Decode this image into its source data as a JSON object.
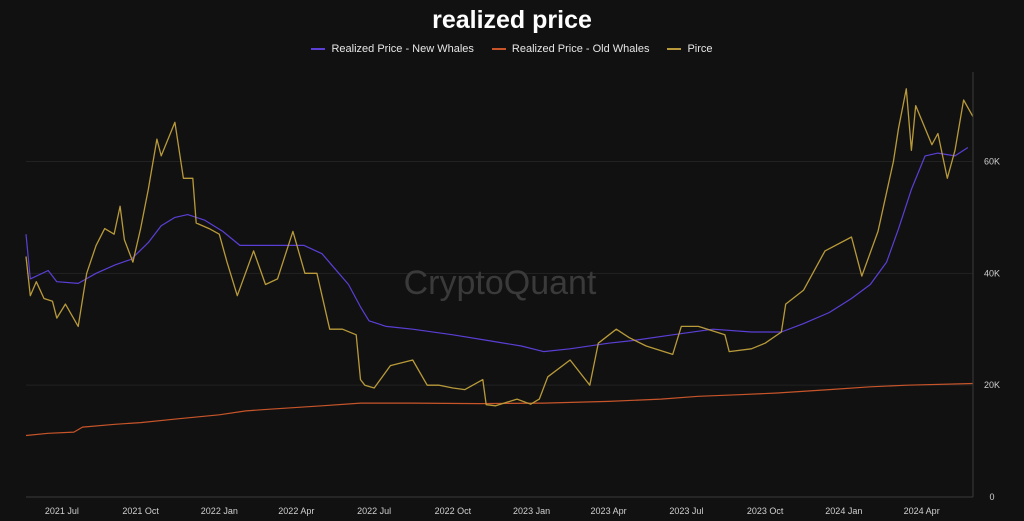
{
  "chart_data": {
    "type": "line",
    "title": "realized price",
    "watermark": "CryptoQuant",
    "x_tick_labels": [
      "2021 Jul",
      "2021 Oct",
      "2022 Jan",
      "2022 Apr",
      "2022 Jul",
      "2022 Oct",
      "2023 Jan",
      "2023 Apr",
      "2023 Jul",
      "2023 Oct",
      "2024 Jan",
      "2024 Apr"
    ],
    "y_tick_labels": [
      "0",
      "20K",
      "40K",
      "60K"
    ],
    "xlim": [
      "2021-05-20",
      "2024-05-31"
    ],
    "ylim": [
      0,
      76000
    ],
    "grid": true,
    "legend_position": "top-center",
    "series": [
      {
        "name": "Realized Price - New Whales",
        "color": "#5b3fd6",
        "points": [
          [
            "2021-05-20",
            47000
          ],
          [
            "2021-05-25",
            39000
          ],
          [
            "2021-06-15",
            40500
          ],
          [
            "2021-06-25",
            38500
          ],
          [
            "2021-07-20",
            38200
          ],
          [
            "2021-08-10",
            40000
          ],
          [
            "2021-09-01",
            41500
          ],
          [
            "2021-09-20",
            42500
          ],
          [
            "2021-10-10",
            45500
          ],
          [
            "2021-10-25",
            48500
          ],
          [
            "2021-11-10",
            50000
          ],
          [
            "2021-11-25",
            50500
          ],
          [
            "2021-12-15",
            49500
          ],
          [
            "2022-01-05",
            47500
          ],
          [
            "2022-01-25",
            45000
          ],
          [
            "2022-02-20",
            45000
          ],
          [
            "2022-03-20",
            45000
          ],
          [
            "2022-04-10",
            45000
          ],
          [
            "2022-05-01",
            43500
          ],
          [
            "2022-05-15",
            41000
          ],
          [
            "2022-06-01",
            38000
          ],
          [
            "2022-06-15",
            34000
          ],
          [
            "2022-06-25",
            31500
          ],
          [
            "2022-07-15",
            30500
          ],
          [
            "2022-08-15",
            30000
          ],
          [
            "2022-10-01",
            29000
          ],
          [
            "2022-11-10",
            28000
          ],
          [
            "2022-12-20",
            27000
          ],
          [
            "2023-01-15",
            26000
          ],
          [
            "2023-02-15",
            26500
          ],
          [
            "2023-04-01",
            27500
          ],
          [
            "2023-05-01",
            28000
          ],
          [
            "2023-06-15",
            29000
          ],
          [
            "2023-08-01",
            30000
          ],
          [
            "2023-09-15",
            29500
          ],
          [
            "2023-10-20",
            29500
          ],
          [
            "2023-11-15",
            31000
          ],
          [
            "2023-12-15",
            33000
          ],
          [
            "2024-01-10",
            35500
          ],
          [
            "2024-02-01",
            38000
          ],
          [
            "2024-02-20",
            42000
          ],
          [
            "2024-03-05",
            48000
          ],
          [
            "2024-03-20",
            55000
          ],
          [
            "2024-04-05",
            61000
          ],
          [
            "2024-04-20",
            61500
          ],
          [
            "2024-05-10",
            61000
          ],
          [
            "2024-05-25",
            62500
          ]
        ]
      },
      {
        "name": "Realized Price - Old Whales",
        "color": "#c8552a",
        "points": [
          [
            "2021-05-20",
            11000
          ],
          [
            "2021-06-15",
            11400
          ],
          [
            "2021-07-15",
            11600
          ],
          [
            "2021-07-25",
            12500
          ],
          [
            "2021-09-01",
            13000
          ],
          [
            "2021-10-01",
            13300
          ],
          [
            "2021-11-15",
            14000
          ],
          [
            "2022-01-01",
            14700
          ],
          [
            "2022-02-01",
            15400
          ],
          [
            "2022-03-01",
            15700
          ],
          [
            "2022-05-01",
            16300
          ],
          [
            "2022-06-15",
            16800
          ],
          [
            "2022-08-15",
            16800
          ],
          [
            "2022-11-01",
            16700
          ],
          [
            "2023-01-15",
            16800
          ],
          [
            "2023-04-01",
            17100
          ],
          [
            "2023-06-01",
            17500
          ],
          [
            "2023-07-15",
            18000
          ],
          [
            "2023-09-01",
            18300
          ],
          [
            "2023-10-15",
            18600
          ],
          [
            "2023-12-15",
            19200
          ],
          [
            "2024-02-01",
            19700
          ],
          [
            "2024-03-15",
            20000
          ],
          [
            "2024-05-31",
            20300
          ]
        ]
      },
      {
        "name": "Pirce",
        "color": "#b89a3a",
        "points": [
          [
            "2021-05-20",
            43000
          ],
          [
            "2021-05-25",
            36000
          ],
          [
            "2021-06-01",
            38500
          ],
          [
            "2021-06-10",
            35500
          ],
          [
            "2021-06-20",
            35000
          ],
          [
            "2021-06-25",
            32000
          ],
          [
            "2021-07-05",
            34500
          ],
          [
            "2021-07-20",
            30500
          ],
          [
            "2021-07-30",
            40000
          ],
          [
            "2021-08-10",
            45000
          ],
          [
            "2021-08-20",
            48000
          ],
          [
            "2021-08-31",
            47000
          ],
          [
            "2021-09-07",
            52000
          ],
          [
            "2021-09-12",
            46000
          ],
          [
            "2021-09-22",
            42000
          ],
          [
            "2021-10-01",
            48000
          ],
          [
            "2021-10-10",
            55000
          ],
          [
            "2021-10-20",
            64000
          ],
          [
            "2021-10-25",
            61000
          ],
          [
            "2021-11-10",
            67000
          ],
          [
            "2021-11-20",
            57000
          ],
          [
            "2021-12-01",
            57000
          ],
          [
            "2021-12-05",
            49000
          ],
          [
            "2021-12-20",
            48000
          ],
          [
            "2022-01-01",
            47000
          ],
          [
            "2022-01-10",
            42000
          ],
          [
            "2022-01-22",
            36000
          ],
          [
            "2022-02-10",
            44000
          ],
          [
            "2022-02-24",
            38000
          ],
          [
            "2022-03-10",
            39000
          ],
          [
            "2022-03-28",
            47500
          ],
          [
            "2022-04-11",
            40000
          ],
          [
            "2022-04-25",
            40000
          ],
          [
            "2022-05-10",
            30000
          ],
          [
            "2022-05-25",
            30000
          ],
          [
            "2022-06-10",
            29000
          ],
          [
            "2022-06-15",
            21000
          ],
          [
            "2022-06-20",
            20000
          ],
          [
            "2022-07-01",
            19500
          ],
          [
            "2022-07-20",
            23500
          ],
          [
            "2022-08-15",
            24500
          ],
          [
            "2022-09-01",
            20000
          ],
          [
            "2022-09-15",
            20000
          ],
          [
            "2022-10-01",
            19500
          ],
          [
            "2022-10-15",
            19200
          ],
          [
            "2022-11-05",
            21000
          ],
          [
            "2022-11-09",
            16500
          ],
          [
            "2022-11-20",
            16300
          ],
          [
            "2022-12-15",
            17500
          ],
          [
            "2022-12-31",
            16600
          ],
          [
            "2023-01-10",
            17500
          ],
          [
            "2023-01-20",
            21500
          ],
          [
            "2023-02-15",
            24500
          ],
          [
            "2023-03-10",
            20000
          ],
          [
            "2023-03-20",
            27500
          ],
          [
            "2023-04-10",
            30000
          ],
          [
            "2023-04-25",
            28500
          ],
          [
            "2023-05-15",
            27000
          ],
          [
            "2023-06-15",
            25500
          ],
          [
            "2023-06-25",
            30500
          ],
          [
            "2023-07-15",
            30500
          ],
          [
            "2023-08-15",
            29000
          ],
          [
            "2023-08-20",
            26000
          ],
          [
            "2023-09-15",
            26500
          ],
          [
            "2023-10-01",
            27500
          ],
          [
            "2023-10-20",
            29500
          ],
          [
            "2023-10-25",
            34500
          ],
          [
            "2023-11-15",
            37000
          ],
          [
            "2023-12-10",
            44000
          ],
          [
            "2024-01-10",
            46500
          ],
          [
            "2024-01-22",
            39500
          ],
          [
            "2024-02-10",
            47500
          ],
          [
            "2024-02-28",
            60000
          ],
          [
            "2024-03-05",
            66000
          ],
          [
            "2024-03-14",
            73000
          ],
          [
            "2024-03-20",
            62000
          ],
          [
            "2024-03-25",
            70000
          ],
          [
            "2024-04-13",
            63000
          ],
          [
            "2024-04-20",
            65000
          ],
          [
            "2024-05-01",
            57000
          ],
          [
            "2024-05-10",
            62000
          ],
          [
            "2024-05-20",
            71000
          ],
          [
            "2024-05-31",
            68000
          ]
        ]
      }
    ]
  }
}
